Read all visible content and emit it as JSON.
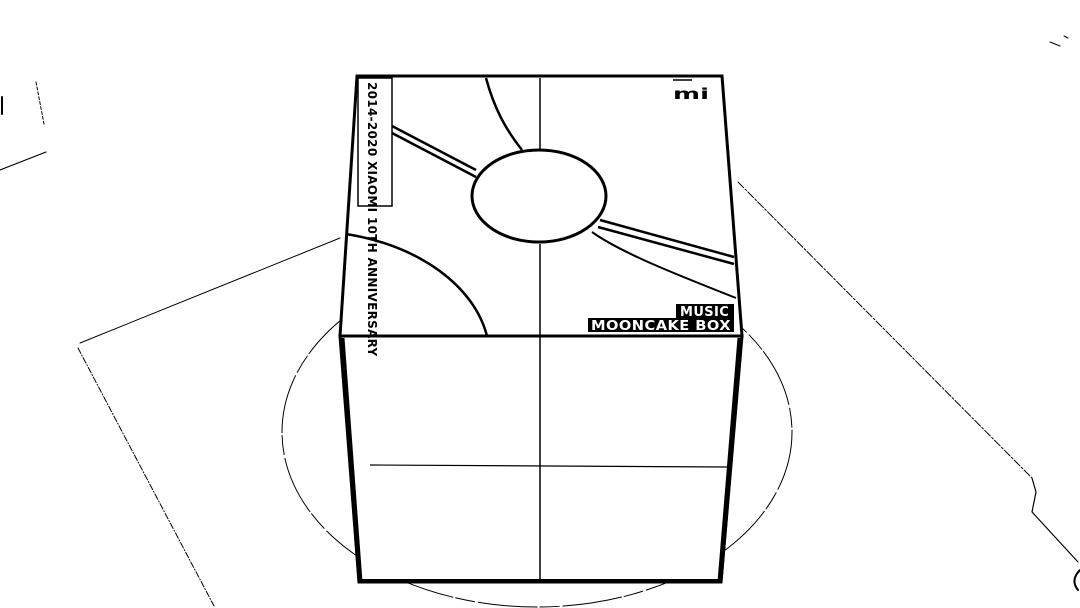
{
  "image": {
    "style": "black-and-white line art (thresholded photo)",
    "background_color": "#ffffff",
    "ink_color": "#000000"
  },
  "box": {
    "side_label": "2014-2020 XIAOMI 10TH ANNIVERSARY",
    "brand_label": "mi",
    "front_label_line1": "MUSIC",
    "front_label_line2": "MOONCAKE BOX"
  }
}
